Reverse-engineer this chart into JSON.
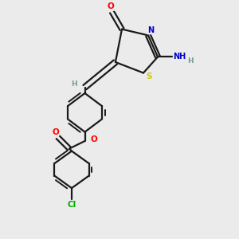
{
  "bg_color": "#ebebeb",
  "bond_color": "#1a1a1a",
  "atom_colors": {
    "O": "#ff0000",
    "N": "#0000cd",
    "S": "#cccc00",
    "Cl": "#00aa00",
    "H": "#7a9a9a",
    "C": "#1a1a1a"
  }
}
